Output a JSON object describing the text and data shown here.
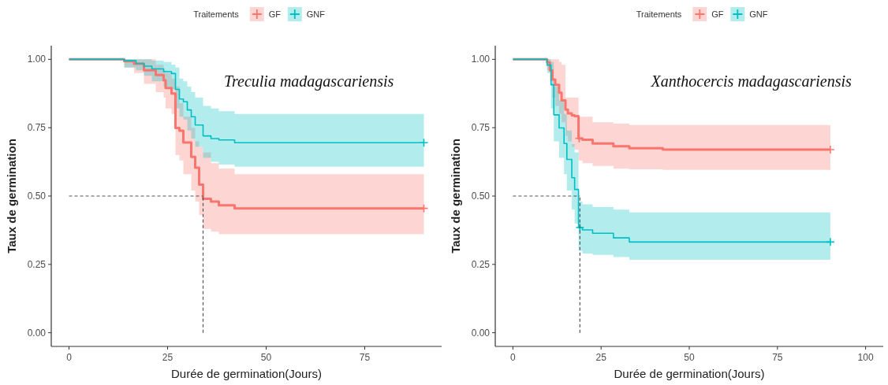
{
  "chart_data": [
    {
      "type": "step",
      "xlabel": "Durée de germination(Jours)",
      "ylabel": "Taux de germination",
      "legend_title": "Traitements",
      "legend": "top",
      "grid": false,
      "annotations": [
        "Treculia madagascariensis"
      ],
      "xlim": [
        -4.5,
        94.5
      ],
      "xticks": [
        0,
        25,
        50,
        75
      ],
      "ylim": [
        -0.05,
        1.05
      ],
      "yticks": [
        {
          "value": 0,
          "label": "0.00"
        },
        {
          "value": 0.25,
          "label": "0.25"
        },
        {
          "value": 0.5,
          "label": "0.50"
        },
        {
          "value": 0.75,
          "label": "0.75"
        },
        {
          "value": 1,
          "label": "1.00"
        }
      ],
      "ref_lines": [
        {
          "axis": "y",
          "value": 0.5,
          "color": "#555555",
          "line_style": "dashed"
        },
        {
          "axis": "x",
          "value": 34,
          "color": "#555555",
          "line_style": "dashed"
        }
      ],
      "series": [
        {
          "name": "GF",
          "color": "#f8766d",
          "x": [
            0,
            14,
            16.5,
            19,
            22,
            24,
            24.5,
            26,
            27,
            28,
            29,
            31,
            32,
            33,
            34,
            36,
            38,
            42,
            90
          ],
          "values": [
            1,
            0.993,
            0.984,
            0.96,
            0.943,
            0.923,
            0.895,
            0.875,
            0.749,
            0.739,
            0.696,
            0.643,
            0.604,
            0.542,
            0.49,
            0.48,
            0.466,
            0.455,
            0.455
          ],
          "upper": [
            1,
            1,
            1,
            1,
            0.98,
            0.96,
            0.95,
            0.93,
            0.9,
            0.84,
            0.79,
            0.75,
            0.7,
            0.68,
            0.66,
            0.62,
            0.6,
            0.58,
            0.58
          ],
          "lower": [
            1,
            0.97,
            0.95,
            0.91,
            0.88,
            0.86,
            0.82,
            0.8,
            0.65,
            0.63,
            0.58,
            0.52,
            0.48,
            0.43,
            0.38,
            0.37,
            0.36,
            0.36,
            0.36
          ]
        },
        {
          "name": "GNF",
          "color": "#00bfc4",
          "x": [
            0,
            14,
            17,
            19,
            21,
            24,
            26,
            27,
            28,
            29,
            30,
            31,
            32,
            34,
            36,
            38,
            42,
            90
          ],
          "values": [
            1,
            0.995,
            0.985,
            0.975,
            0.965,
            0.955,
            0.948,
            0.89,
            0.855,
            0.845,
            0.815,
            0.79,
            0.76,
            0.72,
            0.71,
            0.705,
            0.695,
            0.695
          ],
          "upper": [
            1,
            1,
            1,
            1,
            0.995,
            0.99,
            0.98,
            0.97,
            0.93,
            0.92,
            0.9,
            0.88,
            0.86,
            0.83,
            0.82,
            0.81,
            0.8,
            0.8
          ],
          "lower": [
            1,
            0.97,
            0.96,
            0.94,
            0.92,
            0.9,
            0.89,
            0.82,
            0.79,
            0.78,
            0.74,
            0.71,
            0.68,
            0.64,
            0.625,
            0.615,
            0.607,
            0.607
          ]
        },
        {
          "type": "scatter",
          "marker": "cross",
          "color": "#f8766d",
          "x": [
            90
          ],
          "values": [
            0.455
          ]
        },
        {
          "type": "scatter",
          "marker": "cross",
          "color": "#00bfc4",
          "x": [
            90
          ],
          "values": [
            0.695
          ]
        }
      ]
    },
    {
      "type": "step",
      "xlabel": "Durée de germination(Jours)",
      "ylabel": "Taux de germination",
      "legend_title": "Traitements",
      "legend": "top",
      "grid": false,
      "annotations": [
        "Xanthocercis madagascariensis"
      ],
      "xlim": [
        -5,
        105
      ],
      "xticks": [
        0,
        25,
        50,
        75,
        100
      ],
      "ylim": [
        -0.05,
        1.05
      ],
      "yticks": [
        {
          "value": 0,
          "label": "0.00"
        },
        {
          "value": 0.25,
          "label": "0.25"
        },
        {
          "value": 0.5,
          "label": "0.50"
        },
        {
          "value": 0.75,
          "label": "0.75"
        },
        {
          "value": 1,
          "label": "1.00"
        }
      ],
      "ref_lines": [
        {
          "axis": "y",
          "value": 0.5,
          "color": "#555555",
          "line_style": "dashed"
        },
        {
          "axis": "x",
          "value": 19,
          "color": "#555555",
          "line_style": "dashed"
        }
      ],
      "series": [
        {
          "name": "GF",
          "color": "#f8766d",
          "x": [
            0,
            9.7,
            10.5,
            11.2,
            12,
            13.1,
            13.8,
            14.9,
            15.6,
            16.7,
            17.5,
            18.6,
            19.7,
            22.6,
            28.5,
            33,
            42.5,
            90
          ],
          "values": [
            1,
            0.989,
            0.96,
            0.926,
            0.907,
            0.878,
            0.85,
            0.816,
            0.802,
            0.795,
            0.792,
            0.711,
            0.706,
            0.692,
            0.682,
            0.675,
            0.67,
            0.67
          ],
          "upper": [
            1,
            1,
            1,
            1,
            1,
            0.99,
            0.98,
            0.86,
            0.86,
            0.86,
            0.86,
            0.79,
            0.79,
            0.77,
            0.765,
            0.76,
            0.76,
            0.76
          ],
          "lower": [
            1,
            0.96,
            0.92,
            0.86,
            0.83,
            0.8,
            0.77,
            0.72,
            0.7,
            0.68,
            0.67,
            0.63,
            0.62,
            0.61,
            0.6,
            0.598,
            0.596,
            0.596
          ]
        },
        {
          "name": "GNF",
          "color": "#00bfc4",
          "x": [
            0,
            9.7,
            10.8,
            11.6,
            13.1,
            14.5,
            15.3,
            16.7,
            17.5,
            18.6,
            19.7,
            22.6,
            28.5,
            33,
            90
          ],
          "values": [
            1,
            0.979,
            0.907,
            0.797,
            0.749,
            0.692,
            0.634,
            0.567,
            0.524,
            0.385,
            0.376,
            0.364,
            0.347,
            0.332,
            0.332
          ],
          "upper": [
            1,
            1,
            0.99,
            0.9,
            0.85,
            0.8,
            0.74,
            0.69,
            0.66,
            0.48,
            0.47,
            0.46,
            0.45,
            0.44,
            0.44
          ],
          "lower": [
            1,
            0.95,
            0.82,
            0.7,
            0.64,
            0.58,
            0.52,
            0.45,
            0.4,
            0.3,
            0.29,
            0.285,
            0.277,
            0.267,
            0.267
          ]
        },
        {
          "type": "scatter",
          "marker": "cross",
          "color": "#f8766d",
          "x": [
            18.8,
            90
          ],
          "values": [
            0.711,
            0.67
          ]
        },
        {
          "type": "scatter",
          "marker": "cross",
          "color": "#00bfc4",
          "x": [
            19,
            90
          ],
          "values": [
            0.385,
            0.332
          ]
        }
      ]
    }
  ]
}
